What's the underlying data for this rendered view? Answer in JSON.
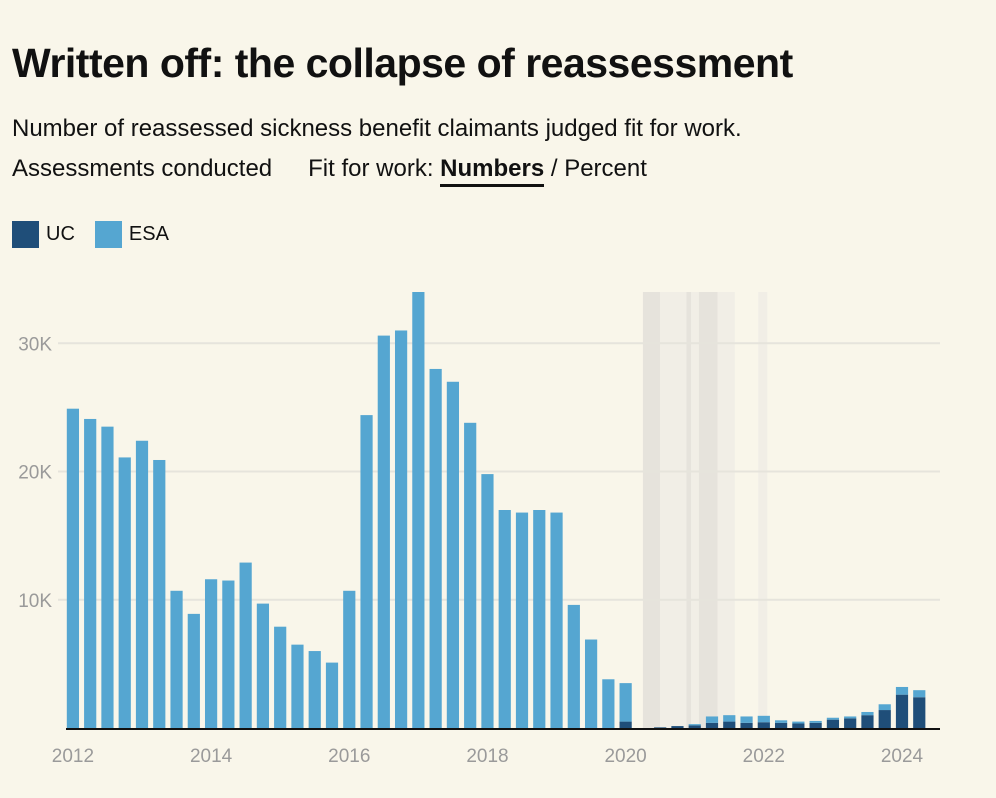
{
  "header": {
    "title": "Written off: the collapse of reassessment",
    "subtitle": "Number of reassessed sickness benefit claimants judged fit for work."
  },
  "controls": {
    "assessments_label": "Assessments conducted",
    "fit_label": "Fit for work:",
    "numbers_label": "Numbers",
    "separator": "/",
    "percent_label": "Percent"
  },
  "colors": {
    "uc": "#1f4e79",
    "esa": "#55a6d1",
    "gridline": "#e6e4dc",
    "axis": "#111111",
    "shade_dark": "#e6e3dc",
    "shade_light": "#f1eee6",
    "background": "#f9f6ea"
  },
  "chart_data": {
    "type": "bar",
    "stacked": true,
    "title": "Written off: the collapse of reassessment",
    "xlabel": "",
    "ylabel": "",
    "ylim": [
      0,
      34000
    ],
    "y_ticks": [
      10000,
      20000,
      30000
    ],
    "y_tick_labels": [
      "10K",
      "20K",
      "30K"
    ],
    "x_ticks": [
      2012,
      2014,
      2016,
      2018,
      2020,
      2022,
      2024
    ],
    "x_tick_labels": [
      "2012",
      "2014",
      "2016",
      "2018",
      "2020",
      "2022",
      "2024"
    ],
    "x_range": [
      2011.9,
      2024.55
    ],
    "grid": true,
    "legend": [
      "UC",
      "ESA"
    ],
    "legend_position": "top-left",
    "shaded_periods": [
      {
        "from": 2020.25,
        "to": 2020.5,
        "tone": "dark"
      },
      {
        "from": 2020.5,
        "to": 2020.88,
        "tone": "light"
      },
      {
        "from": 2020.88,
        "to": 2020.95,
        "tone": "dark"
      },
      {
        "from": 2020.95,
        "to": 2021.06,
        "tone": "light"
      },
      {
        "from": 2021.06,
        "to": 2021.33,
        "tone": "dark"
      },
      {
        "from": 2021.33,
        "to": 2021.58,
        "tone": "light"
      },
      {
        "from": 2021.92,
        "to": 2022.05,
        "tone": "light"
      }
    ],
    "x": [
      2012.0,
      2012.25,
      2012.5,
      2012.75,
      2013.0,
      2013.25,
      2013.5,
      2013.75,
      2014.0,
      2014.25,
      2014.5,
      2014.75,
      2015.0,
      2015.25,
      2015.5,
      2015.75,
      2016.0,
      2016.25,
      2016.5,
      2016.75,
      2017.0,
      2017.25,
      2017.5,
      2017.75,
      2018.0,
      2018.25,
      2018.5,
      2018.75,
      2019.0,
      2019.25,
      2019.5,
      2019.75,
      2020.0,
      2020.25,
      2020.5,
      2020.75,
      2021.0,
      2021.25,
      2021.5,
      2021.75,
      2022.0,
      2022.25,
      2022.5,
      2022.75,
      2023.0,
      2023.25,
      2023.5,
      2023.75,
      2024.0,
      2024.25
    ],
    "series": [
      {
        "name": "UC",
        "values": [
          0,
          0,
          0,
          0,
          0,
          0,
          0,
          0,
          0,
          0,
          0,
          0,
          0,
          0,
          0,
          0,
          0,
          0,
          0,
          0,
          0,
          0,
          0,
          0,
          0,
          0,
          0,
          0,
          0,
          0,
          0,
          0,
          500,
          0,
          50,
          150,
          200,
          400,
          500,
          400,
          450,
          400,
          350,
          400,
          650,
          750,
          1000,
          1400,
          2600,
          2400
        ]
      },
      {
        "name": "ESA",
        "values": [
          24900,
          24100,
          23500,
          21100,
          22400,
          20900,
          10700,
          8900,
          11600,
          11500,
          12900,
          9700,
          7900,
          6500,
          6000,
          5100,
          10700,
          24400,
          30600,
          31000,
          34000,
          28000,
          27000,
          23800,
          19800,
          17000,
          16800,
          17000,
          16800,
          9600,
          6900,
          3800,
          3000,
          0,
          0,
          0,
          100,
          500,
          500,
          500,
          500,
          200,
          150,
          150,
          150,
          150,
          250,
          450,
          600,
          550
        ]
      }
    ]
  }
}
